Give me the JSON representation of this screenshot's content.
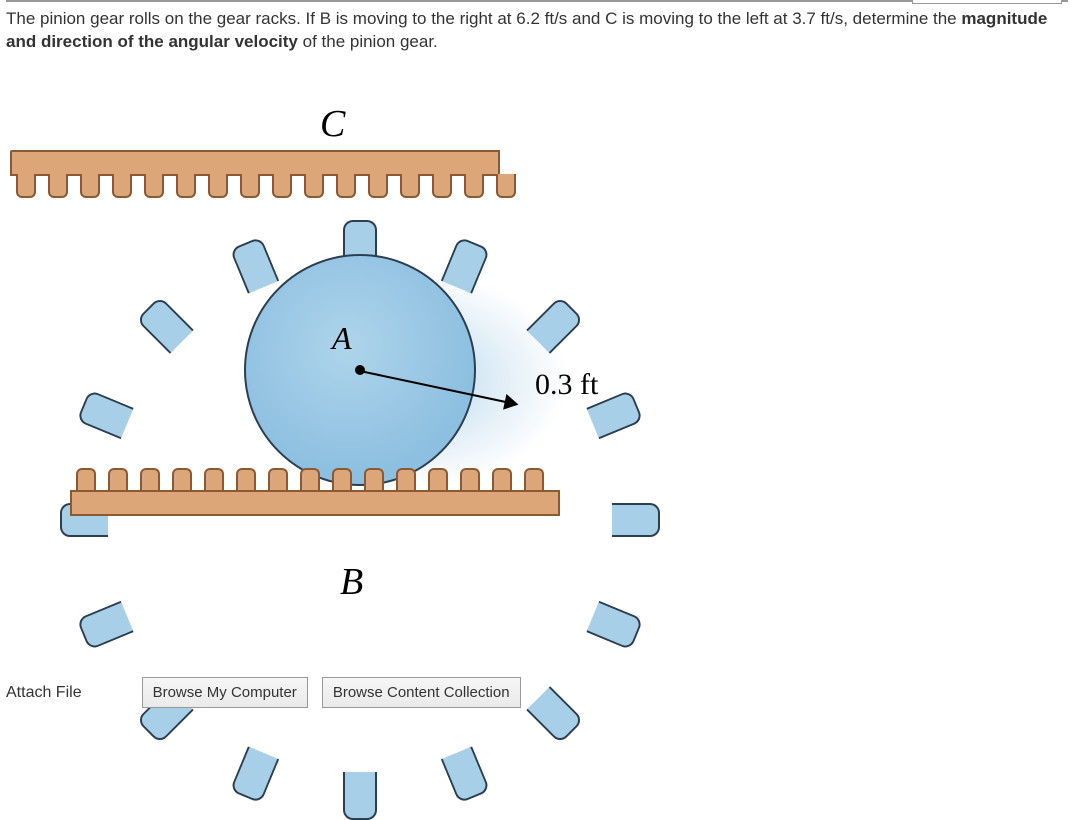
{
  "question": {
    "pre": "The pinion gear rolls on the gear racks. If B is moving to the right at ",
    "vB": "6.2 ft/s",
    "mid1": " and C is moving to the left at ",
    "vC": "3.7 ft/s",
    "mid2": ", determine the ",
    "bold": "magnitude and direction of the angular velocity",
    "post": " of the pinion gear."
  },
  "figure": {
    "labels": {
      "C": "C",
      "A": "A",
      "B": "B",
      "radius": "0.3 ft"
    },
    "radius_ft": 0.3,
    "gear": {
      "tooth_count": 16,
      "body_color": "#8cbfe0",
      "tooth_color": "#a7cfe8",
      "outline_color": "#2c3e50"
    },
    "rack": {
      "top_teeth": 16,
      "bottom_teeth": 15,
      "fill_color": "#dca678",
      "outline_color": "#8a5a33"
    }
  },
  "attach": {
    "label": "Attach File",
    "browse_computer": "Browse My Computer",
    "browse_collection": "Browse Content Collection"
  }
}
